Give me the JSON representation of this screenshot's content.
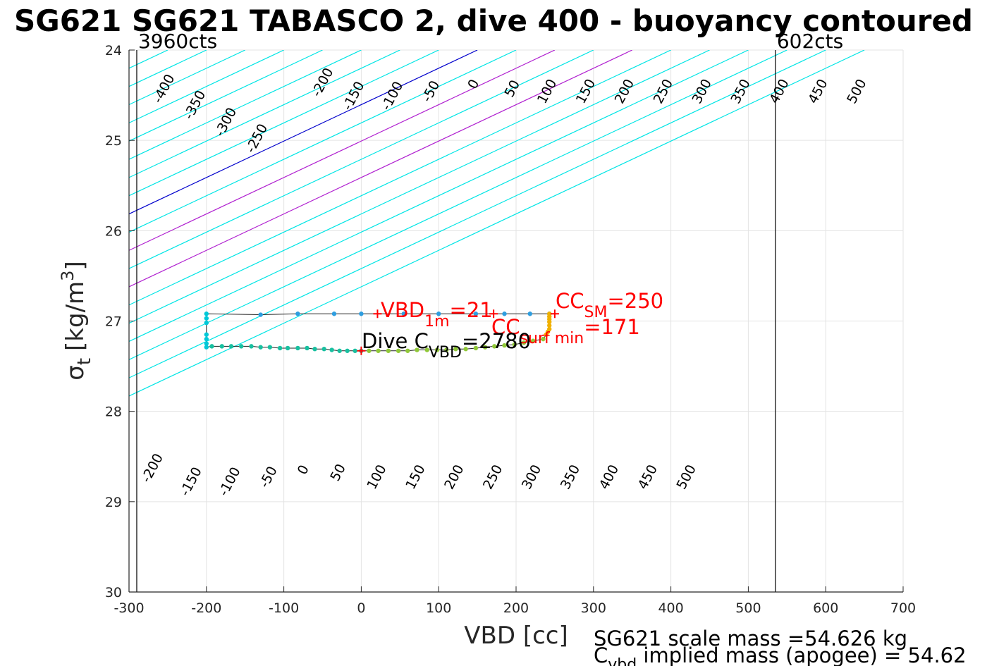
{
  "chart_data": {
    "type": "scatter",
    "title": "SG621 SG621 TABASCO 2, dive 400 - buoyancy contoured",
    "xlabel": "VBD [cc]",
    "ylabel": "σ",
    "ylabel_sub": "t",
    "ylabel_units": "[kg/m",
    "ylabel_units_sup": "3",
    "ylabel_units_close": "]",
    "xlim": [
      -300,
      700
    ],
    "ylim": [
      24,
      30
    ],
    "y_reversed": true,
    "grid": true,
    "xticks": [
      -300,
      -200,
      -100,
      0,
      100,
      200,
      300,
      400,
      500,
      600,
      700
    ],
    "yticks": [
      24,
      25,
      26,
      27,
      28,
      29,
      30
    ],
    "vbd_limits": [
      {
        "x": -290,
        "label": "3960cts"
      },
      {
        "x": 535,
        "label": "602cts"
      }
    ],
    "contour_levels": [
      -400,
      -350,
      -300,
      -250,
      -200,
      -150,
      -100,
      -50,
      0,
      50,
      100,
      150,
      200,
      250,
      300,
      350,
      400,
      450,
      500
    ],
    "contour_slope_cc_per_sigma": 248,
    "contour_colors": {
      "default": "#00e5e5",
      "zero": "#0000cc",
      "highlight": "#b020d0"
    },
    "highlight_levels": [
      100,
      200
    ],
    "contour_labels_top": [
      {
        "level": -400,
        "x": -250,
        "y": 24.45
      },
      {
        "level": -350,
        "x": -210,
        "y": 24.63
      },
      {
        "level": -300,
        "x": -170,
        "y": 24.82
      },
      {
        "level": -250,
        "x": -130,
        "y": 25.0
      },
      {
        "level": -200,
        "x": -45,
        "y": 24.38
      },
      {
        "level": -150,
        "x": -5,
        "y": 24.53
      },
      {
        "level": -100,
        "x": 45,
        "y": 24.53
      },
      {
        "level": -50,
        "x": 95,
        "y": 24.48
      },
      {
        "level": 0,
        "x": 150,
        "y": 24.4
      },
      {
        "level": 50,
        "x": 200,
        "y": 24.45
      },
      {
        "level": 100,
        "x": 245,
        "y": 24.48
      },
      {
        "level": 150,
        "x": 295,
        "y": 24.48
      },
      {
        "level": 200,
        "x": 345,
        "y": 24.48
      },
      {
        "level": 250,
        "x": 395,
        "y": 24.48
      },
      {
        "level": 300,
        "x": 445,
        "y": 24.48
      },
      {
        "level": 350,
        "x": 495,
        "y": 24.48
      },
      {
        "level": 400,
        "x": 545,
        "y": 24.48
      },
      {
        "level": 450,
        "x": 595,
        "y": 24.48
      },
      {
        "level": 500,
        "x": 645,
        "y": 24.48
      }
    ],
    "contour_labels_bottom": [
      {
        "level": -200,
        "x": -265,
        "y": 28.65
      },
      {
        "level": -150,
        "x": -215,
        "y": 28.8
      },
      {
        "level": -100,
        "x": -165,
        "y": 28.8
      },
      {
        "level": -50,
        "x": -115,
        "y": 28.75
      },
      {
        "level": 0,
        "x": -70,
        "y": 28.67
      },
      {
        "level": 50,
        "x": -25,
        "y": 28.7
      },
      {
        "level": 100,
        "x": 25,
        "y": 28.75
      },
      {
        "level": 150,
        "x": 75,
        "y": 28.75
      },
      {
        "level": 200,
        "x": 125,
        "y": 28.75
      },
      {
        "level": 250,
        "x": 175,
        "y": 28.75
      },
      {
        "level": 300,
        "x": 225,
        "y": 28.75
      },
      {
        "level": 350,
        "x": 275,
        "y": 28.75
      },
      {
        "level": 400,
        "x": 325,
        "y": 28.75
      },
      {
        "level": 450,
        "x": 375,
        "y": 28.75
      },
      {
        "level": 500,
        "x": 425,
        "y": 28.75
      }
    ],
    "series": [
      {
        "color": "#00c8d8",
        "x": [
          -200,
          -200,
          -200,
          -200,
          -200,
          -200,
          -200
        ],
        "y": [
          26.92,
          26.97,
          27.02,
          27.15,
          27.2,
          27.25,
          27.29
        ]
      },
      {
        "color": "#2e9ee0",
        "x": [
          -130,
          -82,
          -35,
          0,
          55,
          100,
          148,
          185,
          218,
          243
        ],
        "y": [
          26.93,
          26.92,
          26.92,
          26.92,
          26.92,
          26.92,
          26.92,
          26.92,
          26.92,
          26.92
        ]
      },
      {
        "color": "#18c0a0",
        "x": [
          -193,
          -180,
          -168,
          -155,
          -142,
          -130,
          -118,
          -105,
          -95,
          -82,
          -70,
          -60,
          -48,
          -38,
          -28,
          -18,
          -8,
          0
        ],
        "y": [
          27.28,
          27.28,
          27.28,
          27.28,
          27.28,
          27.29,
          27.29,
          27.3,
          27.3,
          27.3,
          27.3,
          27.31,
          27.31,
          27.32,
          27.33,
          27.33,
          27.33,
          27.33
        ]
      },
      {
        "color": "#90c838",
        "x": [
          10,
          22,
          35,
          48,
          60,
          72,
          85,
          98,
          110,
          122,
          135,
          148,
          160,
          172,
          185,
          198,
          210,
          222,
          235
        ],
        "y": [
          27.33,
          27.33,
          27.33,
          27.33,
          27.33,
          27.32,
          27.32,
          27.32,
          27.32,
          27.31,
          27.31,
          27.3,
          27.29,
          27.28,
          27.27,
          27.26,
          27.24,
          27.22,
          27.2
        ]
      },
      {
        "color": "#f0b000",
        "x": [
          243,
          243,
          243,
          243,
          243,
          243,
          241,
          239
        ],
        "y": [
          26.92,
          26.95,
          26.98,
          27.01,
          27.05,
          27.09,
          27.12,
          27.15
        ]
      }
    ],
    "markers": [
      {
        "x": 21,
        "y": 26.92,
        "color": "#ff0000"
      },
      {
        "x": 250,
        "y": 26.92,
        "color": "#ff0000"
      },
      {
        "x": 171,
        "y": 26.92,
        "color": "#ff0000"
      },
      {
        "x": 0,
        "y": 27.33,
        "color": "#ff0000"
      }
    ]
  },
  "annotations": {
    "vbd1m_pre": "VBD",
    "vbd1m_sub": "1m",
    "vbd1m_post": "=21",
    "ccsm_pre": "CC",
    "ccsm_sub": "SM",
    "ccsm_post": "=250",
    "ccsurf_pre": "CC",
    "ccsurf_sub": "surf min",
    "ccsurf_post": "=171",
    "dive_pre": "Dive C",
    "dive_sub": "VBD",
    "dive_post": "=2780",
    "color_red": "#ff0000",
    "color_black": "#000000"
  },
  "footer": {
    "line1": "SG621 scale mass =54.626 kg",
    "line2_pre": "C",
    "line2_sub": "vbd",
    "line2_post": " implied mass (apogee) = 54.62"
  }
}
